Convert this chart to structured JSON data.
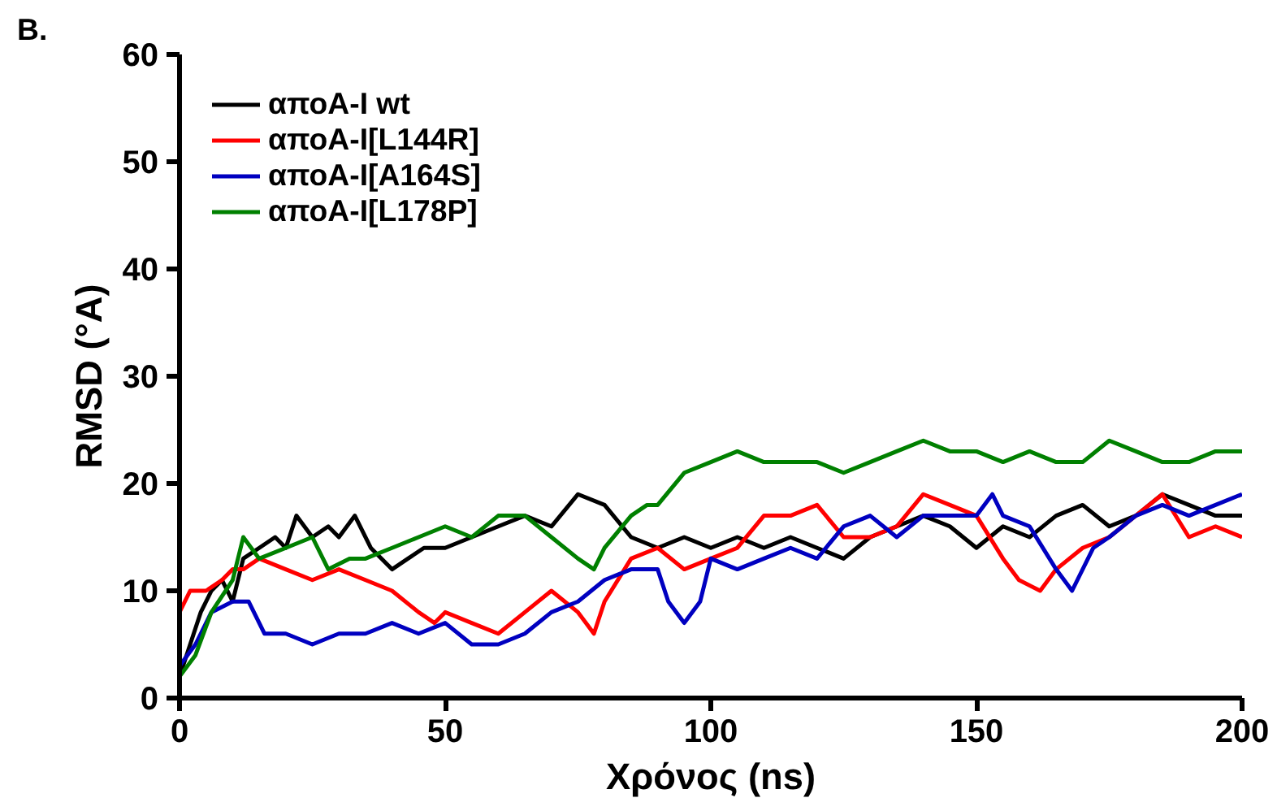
{
  "chart_data": {
    "type": "line",
    "title": "B.",
    "xlabel": "Χρόνος (ns)",
    "ylabel": "RMSD (°A)",
    "xlim": [
      0,
      200
    ],
    "xticks": [
      0,
      50,
      100,
      150,
      200
    ],
    "ylim": [
      0,
      60
    ],
    "yticks": [
      0,
      10,
      20,
      30,
      40,
      50,
      60
    ],
    "grid": false,
    "legend": "top left",
    "marker": "none",
    "line_style": "solid",
    "series": [
      {
        "name": "αποA-I wt",
        "color": "#000000",
        "x": [
          0,
          2,
          4,
          6,
          8,
          10,
          12,
          15,
          18,
          20,
          22,
          25,
          28,
          30,
          33,
          36,
          40,
          43,
          46,
          50,
          55,
          60,
          65,
          70,
          75,
          80,
          85,
          90,
          95,
          100,
          105,
          110,
          115,
          120,
          125,
          130,
          135,
          140,
          145,
          150,
          155,
          160,
          165,
          170,
          175,
          180,
          185,
          190,
          195,
          200
        ],
        "values": [
          2,
          5,
          8,
          10,
          11,
          9,
          13,
          14,
          15,
          14,
          17,
          15,
          16,
          15,
          17,
          14,
          12,
          13,
          14,
          14,
          15,
          16,
          17,
          16,
          19,
          18,
          15,
          14,
          15,
          14,
          15,
          14,
          15,
          14,
          13,
          15,
          16,
          17,
          16,
          14,
          16,
          15,
          17,
          18,
          16,
          17,
          19,
          18,
          17,
          17
        ]
      },
      {
        "name": "αποA-I[L144R]",
        "color": "#ff0000",
        "x": [
          0,
          2,
          5,
          8,
          10,
          12,
          15,
          20,
          25,
          30,
          35,
          40,
          45,
          48,
          50,
          55,
          60,
          65,
          70,
          75,
          78,
          80,
          85,
          90,
          95,
          100,
          105,
          110,
          115,
          120,
          125,
          130,
          135,
          140,
          145,
          150,
          155,
          158,
          162,
          165,
          170,
          175,
          180,
          185,
          190,
          195,
          200
        ],
        "values": [
          8,
          10,
          10,
          11,
          12,
          12,
          13,
          12,
          11,
          12,
          11,
          10,
          8,
          7,
          8,
          7,
          6,
          8,
          10,
          8,
          6,
          9,
          13,
          14,
          12,
          13,
          14,
          17,
          17,
          18,
          15,
          15,
          16,
          19,
          18,
          17,
          13,
          11,
          10,
          12,
          14,
          15,
          17,
          19,
          15,
          16,
          15
        ]
      },
      {
        "name": "αποA-I[A164S]",
        "color": "#0000c0",
        "x": [
          0,
          3,
          6,
          10,
          13,
          16,
          20,
          25,
          30,
          35,
          40,
          45,
          50,
          55,
          60,
          65,
          70,
          75,
          80,
          85,
          90,
          92,
          95,
          98,
          100,
          105,
          110,
          115,
          120,
          125,
          130,
          135,
          140,
          145,
          150,
          153,
          155,
          160,
          165,
          168,
          172,
          175,
          180,
          185,
          190,
          195,
          200
        ],
        "values": [
          3,
          5,
          8,
          9,
          9,
          6,
          6,
          5,
          6,
          6,
          7,
          6,
          7,
          5,
          5,
          6,
          8,
          9,
          11,
          12,
          12,
          9,
          7,
          9,
          13,
          12,
          13,
          14,
          13,
          16,
          17,
          15,
          17,
          17,
          17,
          19,
          17,
          16,
          12,
          10,
          14,
          15,
          17,
          18,
          17,
          18,
          19
        ]
      },
      {
        "name": "αποA-I[L178P]",
        "color": "#008000",
        "x": [
          0,
          3,
          6,
          10,
          12,
          15,
          20,
          25,
          28,
          32,
          35,
          40,
          45,
          50,
          55,
          60,
          65,
          70,
          75,
          78,
          80,
          85,
          88,
          90,
          95,
          100,
          105,
          110,
          115,
          120,
          125,
          130,
          135,
          140,
          145,
          150,
          155,
          160,
          165,
          170,
          175,
          180,
          185,
          190,
          195,
          200
        ],
        "values": [
          2,
          4,
          8,
          11,
          15,
          13,
          14,
          15,
          12,
          13,
          13,
          14,
          15,
          16,
          15,
          17,
          17,
          15,
          13,
          12,
          14,
          17,
          18,
          18,
          21,
          22,
          23,
          22,
          22,
          22,
          21,
          22,
          23,
          24,
          23,
          23,
          22,
          23,
          22,
          22,
          24,
          23,
          22,
          22,
          23,
          23
        ]
      }
    ]
  }
}
